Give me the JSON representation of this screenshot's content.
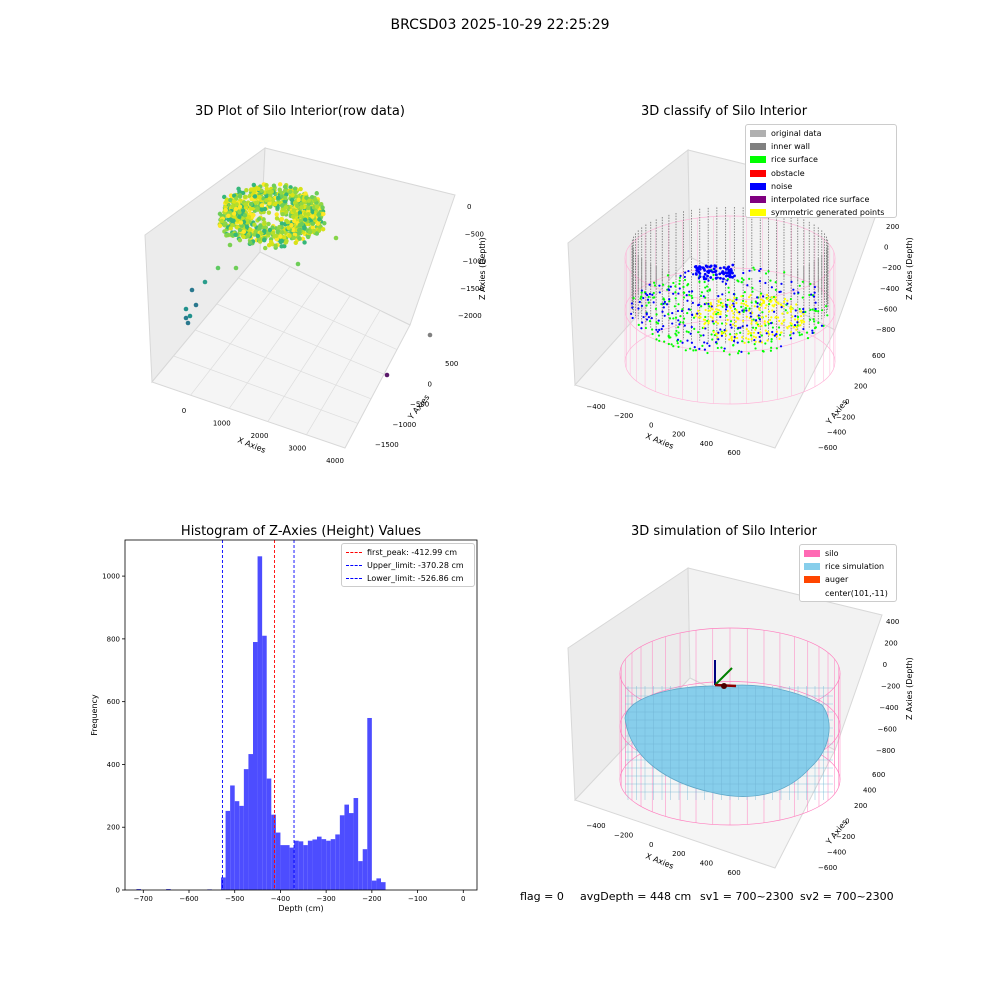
{
  "suptitle": "BRCSD03 2025-10-29 22:25:29",
  "status": {
    "flag": "flag = 0",
    "avg": "avgDepth = 448 cm",
    "sv1": "sv1 = 700~2300",
    "sv2": "sv2 = 700~2300"
  },
  "chart_data": [
    {
      "type": "scatter",
      "title": "3D Plot of Silo Interior(row data)",
      "xlabel": "X Axies",
      "ylabel": "Y Axies",
      "zlabel": "Z Axies (Depth)",
      "xticks": [
        "0",
        "1000",
        "2000",
        "3000",
        "4000"
      ],
      "yticks": [
        "500",
        "0",
        "−500",
        "−1000",
        "−1500"
      ],
      "zticks": [
        "0",
        "−500",
        "−1000",
        "−1500",
        "−2000"
      ],
      "colormap": "viridis",
      "description_points": [
        {
          "x": 0,
          "y": 0,
          "z": -300,
          "note": "dense ring of points (silo surface)"
        },
        {
          "x": 4000,
          "y": -1500,
          "z": -2100,
          "note": "outlier"
        }
      ]
    },
    {
      "type": "scatter",
      "title": "3D classify of Silo Interior",
      "xlabel": "X Axies",
      "ylabel": "Y Axies",
      "zlabel": "Z Axies (Depth)",
      "xticks": [
        "−400",
        "−200",
        "0",
        "200",
        "400",
        "600"
      ],
      "yticks": [
        "600",
        "400",
        "200",
        "0",
        "−200",
        "−400",
        "−600"
      ],
      "zticks": [
        "200",
        "0",
        "−200",
        "−400",
        "−600",
        "−800"
      ],
      "legend": [
        {
          "label": "original data",
          "color": "#b0b0b0"
        },
        {
          "label": "inner wall",
          "color": "#808080"
        },
        {
          "label": "rice surface",
          "color": "#00ff00"
        },
        {
          "label": "obstacle",
          "color": "#ff0000"
        },
        {
          "label": "noise",
          "color": "#0000ff"
        },
        {
          "label": "interpolated rice surface",
          "color": "#800080"
        },
        {
          "label": "symmetric generated points",
          "color": "#ffff00"
        }
      ]
    },
    {
      "type": "bar",
      "title": "Histogram of Z-Axies (Height) Values",
      "xlabel": "Depth (cm)",
      "ylabel": "Frequency",
      "xlim": [
        -740,
        30
      ],
      "ylim": [
        0,
        1115
      ],
      "xticks": [
        -700,
        -600,
        -500,
        -400,
        -300,
        -200,
        -100,
        0
      ],
      "yticks": [
        0,
        200,
        400,
        600,
        800,
        1000
      ],
      "bin_width": 10,
      "bins": [
        {
          "x": -715,
          "v": 3
        },
        {
          "x": -650,
          "v": 3
        },
        {
          "x": -560,
          "v": 2
        },
        {
          "x": -530,
          "v": 40
        },
        {
          "x": -520,
          "v": 252
        },
        {
          "x": -510,
          "v": 333
        },
        {
          "x": -500,
          "v": 283
        },
        {
          "x": -490,
          "v": 268
        },
        {
          "x": -480,
          "v": 385
        },
        {
          "x": -470,
          "v": 433
        },
        {
          "x": -460,
          "v": 790
        },
        {
          "x": -450,
          "v": 1063
        },
        {
          "x": -440,
          "v": 810
        },
        {
          "x": -430,
          "v": 355
        },
        {
          "x": -420,
          "v": 240
        },
        {
          "x": -410,
          "v": 183
        },
        {
          "x": -400,
          "v": 143
        },
        {
          "x": -390,
          "v": 143
        },
        {
          "x": -380,
          "v": 135
        },
        {
          "x": -370,
          "v": 157
        },
        {
          "x": -360,
          "v": 155
        },
        {
          "x": -350,
          "v": 143
        },
        {
          "x": -340,
          "v": 157
        },
        {
          "x": -330,
          "v": 161
        },
        {
          "x": -320,
          "v": 170
        },
        {
          "x": -310,
          "v": 162
        },
        {
          "x": -300,
          "v": 157
        },
        {
          "x": -290,
          "v": 162
        },
        {
          "x": -280,
          "v": 177
        },
        {
          "x": -270,
          "v": 238
        },
        {
          "x": -260,
          "v": 272
        },
        {
          "x": -250,
          "v": 245
        },
        {
          "x": -240,
          "v": 293
        },
        {
          "x": -230,
          "v": 92
        },
        {
          "x": -220,
          "v": 130
        },
        {
          "x": -210,
          "v": 548
        },
        {
          "x": -200,
          "v": 30
        },
        {
          "x": -190,
          "v": 37
        },
        {
          "x": -180,
          "v": 25
        }
      ],
      "vlines": [
        {
          "label": "first_peak: -412.99 cm",
          "value": -412.99,
          "color": "#ff0000"
        },
        {
          "label": "Upper_limit: -370.28 cm",
          "value": -370.28,
          "color": "#0000ff"
        },
        {
          "label": "Lower_limit: -526.86 cm",
          "value": -526.86,
          "color": "#0000ff"
        }
      ],
      "bar_color": "#4d4dff",
      "legend_position": "top-right"
    },
    {
      "type": "surface",
      "title": "3D simulation of Silo Interior",
      "xlabel": "X Axies",
      "ylabel": "Y Axies",
      "zlabel": "Z Axies (Depth)",
      "xticks": [
        "−400",
        "−200",
        "0",
        "200",
        "400",
        "600"
      ],
      "yticks": [
        "600",
        "400",
        "200",
        "0",
        "−200",
        "−400",
        "−600"
      ],
      "zticks": [
        "400",
        "200",
        "0",
        "−200",
        "−400",
        "−600",
        "−800"
      ],
      "legend": [
        {
          "label": "silo",
          "color": "#ff69b4"
        },
        {
          "label": "rice simulation",
          "color": "#87ceeb"
        },
        {
          "label": "auger",
          "color": "#ff4500"
        },
        {
          "label": "center(101,-11)",
          "color": ""
        }
      ]
    }
  ]
}
